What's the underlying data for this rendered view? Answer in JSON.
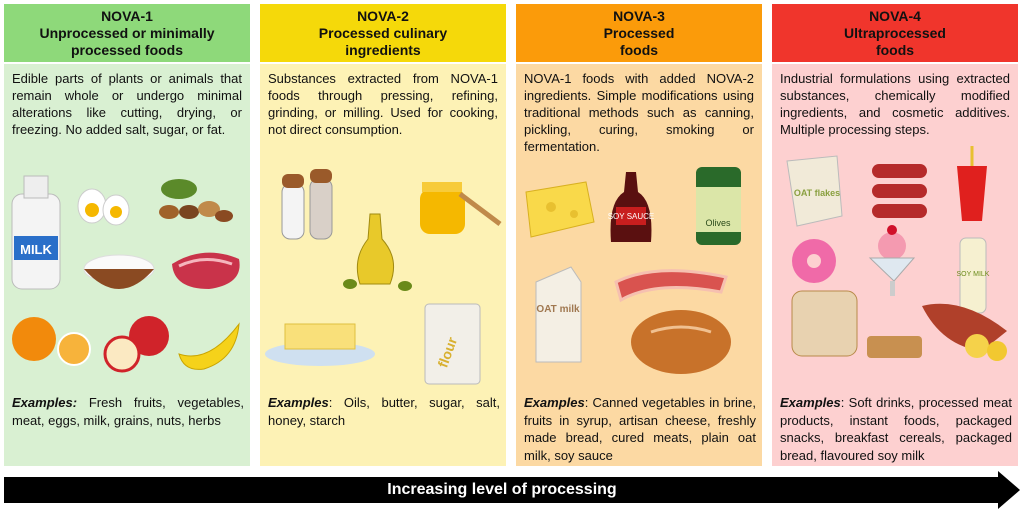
{
  "columns": [
    {
      "id": "nova1",
      "title": "NOVA-1",
      "subtitle": "Unprocessed or minimally processed foods",
      "header_color": "#8ed97a",
      "body_color": "#d9f0d2",
      "description": "Edible parts of plants or animals that remain whole or undergo minimal alterations like cutting, drying, or freezing. No added salt, sugar, or fat.",
      "examples_label": "Examples:",
      "examples": " Fresh fruits, vegetables, meat, eggs, milk, grains, nuts, herbs",
      "image_labels": [
        "MILK"
      ]
    },
    {
      "id": "nova2",
      "title": "NOVA-2",
      "subtitle": "Processed culinary ingredients",
      "header_color": "#f5d90a",
      "body_color": "#fdf2b5",
      "description": "Substances extracted from NOVA-1 foods through pressing, refining, grinding, or milling. Used for cooking, not direct consumption.",
      "examples_label": "Examples",
      "examples": ": Oils, butter, sugar, salt, honey, starch",
      "image_labels": [
        "flour"
      ]
    },
    {
      "id": "nova3",
      "title": "NOVA-3",
      "subtitle": "Processed foods",
      "header_color": "#fb9b0a",
      "body_color": "#fcd9a3",
      "description": "NOVA-1 foods with added NOVA-2 ingredients. Simple modifications using traditional methods such as canning, pickling, curing, smoking or fermentation.",
      "examples_label": "Examples",
      "examples": ": Canned vegetables in brine, fruits in syrup, artisan cheese, freshly made bread, cured meats, plain oat milk, soy sauce",
      "image_labels": [
        "SOY SAUCE",
        "Olives",
        "OAT milk"
      ]
    },
    {
      "id": "nova4",
      "title": "NOVA-4",
      "subtitle": "Ultraprocessed foods",
      "header_color": "#f0352c",
      "body_color": "#fdd0d0",
      "description": "Industrial formulations using extracted substances, chemically modified ingredients, and cosmetic additives. Multiple processing steps.",
      "examples_label": "Examples",
      "examples": ": Soft drinks, processed meat products, instant foods, packaged snacks, breakfast cereals, packaged bread, flavoured soy milk",
      "image_labels": [
        "OAT flakes",
        "SOY MILK"
      ]
    }
  ],
  "arrow": {
    "label": "Increasing level of processing"
  }
}
